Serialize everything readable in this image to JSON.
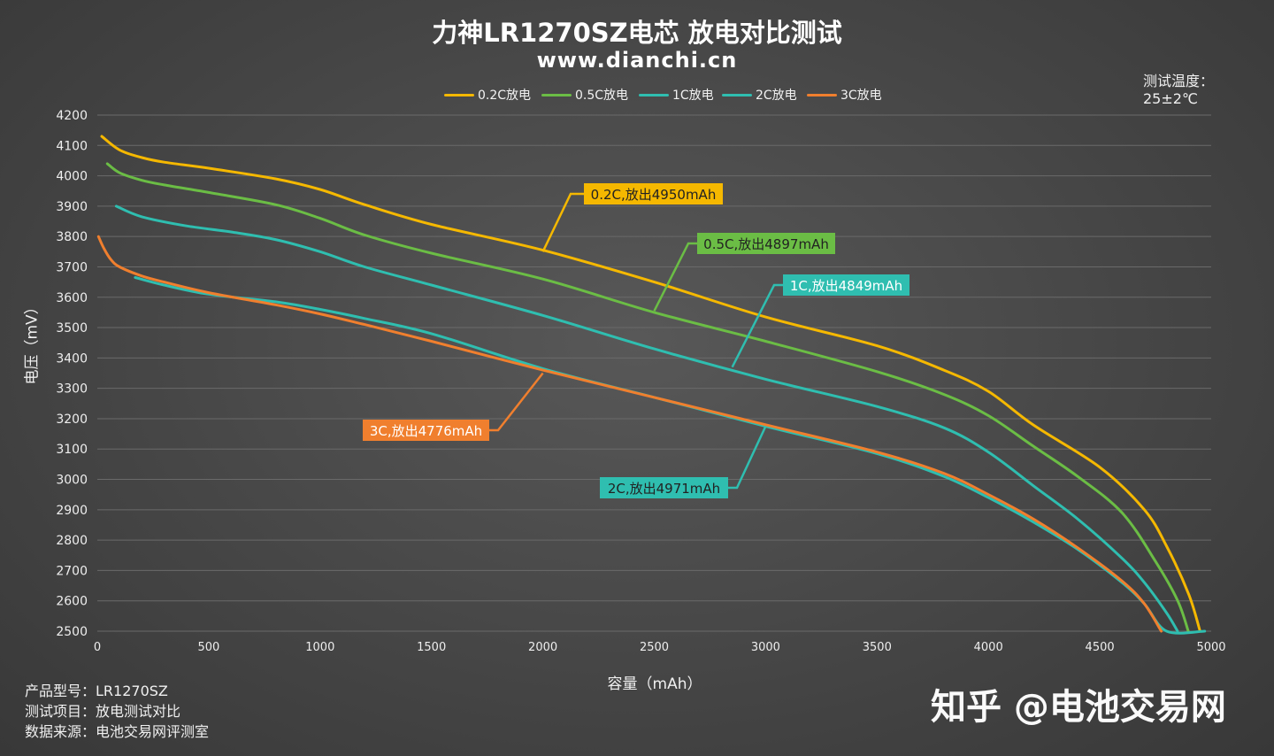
{
  "title": "力神LR1270SZ电芯 放电对比测试",
  "subtitle": "www.dianchi.cn",
  "temp_label": "测试温度：",
  "temp_value": "25±2℃",
  "info": {
    "model": "产品型号：LR1270SZ",
    "item": "测试项目：放电测试对比",
    "source": "数据来源：电池交易网评测室"
  },
  "watermark": "知乎 @电池交易网",
  "chart_data": {
    "type": "line",
    "xlabel": "容量（mAh）",
    "ylabel": "电压（mV）",
    "xlim": [
      0,
      5000
    ],
    "ylim": [
      2500,
      4200
    ],
    "xticks": [
      "0",
      "500",
      "1000",
      "1500",
      "2000",
      "2500",
      "3000",
      "3500",
      "4000",
      "4500",
      "5000"
    ],
    "yticks": [
      "2500",
      "2600",
      "2700",
      "2800",
      "2900",
      "3000",
      "3100",
      "3200",
      "3300",
      "3400",
      "3500",
      "3600",
      "3700",
      "3800",
      "3900",
      "4000",
      "4100",
      "4200"
    ],
    "grid": "horizontal",
    "legend_position": "top-center",
    "series": [
      {
        "name": "0.2C放电",
        "color": "#f5b800",
        "x": [
          20,
          100,
          200,
          300,
          500,
          800,
          1000,
          1200,
          1500,
          2000,
          2500,
          3000,
          3500,
          3800,
          4000,
          4200,
          4500,
          4700,
          4800,
          4900,
          4950
        ],
        "y": [
          4130,
          4085,
          4060,
          4045,
          4025,
          3990,
          3955,
          3905,
          3840,
          3755,
          3650,
          3535,
          3440,
          3360,
          3290,
          3180,
          3040,
          2900,
          2780,
          2620,
          2500
        ]
      },
      {
        "name": "0.5C放电",
        "color": "#6bbd45",
        "x": [
          45,
          100,
          200,
          300,
          500,
          800,
          1000,
          1200,
          1500,
          2000,
          2500,
          3000,
          3500,
          3800,
          4000,
          4200,
          4400,
          4600,
          4750,
          4850,
          4897
        ],
        "y": [
          4040,
          4010,
          3985,
          3970,
          3945,
          3905,
          3860,
          3805,
          3745,
          3660,
          3550,
          3455,
          3355,
          3280,
          3210,
          3110,
          3010,
          2890,
          2730,
          2600,
          2500
        ]
      },
      {
        "name": "1C放电",
        "color": "#2fbeb0",
        "x": [
          85,
          200,
          400,
          600,
          800,
          1000,
          1200,
          1500,
          2000,
          2500,
          3000,
          3500,
          3800,
          4000,
          4200,
          4400,
          4600,
          4700,
          4800,
          4849
        ],
        "y": [
          3900,
          3865,
          3835,
          3815,
          3790,
          3750,
          3700,
          3640,
          3540,
          3430,
          3330,
          3240,
          3170,
          3090,
          2980,
          2870,
          2740,
          2660,
          2560,
          2500
        ]
      },
      {
        "name": "2C放电",
        "color": "#2fbeb0",
        "x": [
          170,
          300,
          500,
          800,
          1000,
          1200,
          1500,
          2000,
          2500,
          3000,
          3500,
          3800,
          4000,
          4200,
          4400,
          4600,
          4700,
          4800,
          4971
        ],
        "y": [
          3665,
          3640,
          3610,
          3585,
          3560,
          3530,
          3480,
          3365,
          3270,
          3175,
          3085,
          3010,
          2940,
          2860,
          2770,
          2660,
          2590,
          2500,
          2500
        ]
      },
      {
        "name": "3C放电",
        "color": "#f07f2e",
        "x": [
          5,
          30,
          60,
          100,
          200,
          300,
          500,
          800,
          1000,
          1200,
          1500,
          2000,
          2500,
          3000,
          3500,
          3800,
          4000,
          4200,
          4400,
          4600,
          4700,
          4776
        ],
        "y": [
          3800,
          3760,
          3725,
          3700,
          3670,
          3650,
          3615,
          3575,
          3545,
          3510,
          3455,
          3360,
          3270,
          3180,
          3090,
          3020,
          2950,
          2870,
          2775,
          2665,
          2590,
          2500
        ]
      }
    ],
    "annotations": [
      {
        "text": "0.2C,放出4950mAh",
        "color": "#f5b800",
        "text_color": "#222222",
        "at": [
          2000,
          3750
        ]
      },
      {
        "text": "0.5C,放出4897mAh",
        "color": "#6bbd45",
        "text_color": "#222222",
        "at": [
          2500,
          3555
        ]
      },
      {
        "text": "1C,放出4849mAh",
        "color": "#2fbeb0",
        "text_color": "#ffffff",
        "at": [
          2850,
          3370
        ]
      },
      {
        "text": "3C,放出4776mAh",
        "color": "#f07f2e",
        "text_color": "#ffffff",
        "at": [
          2000,
          3350
        ]
      },
      {
        "text": "2C,放出4971mAh",
        "color": "#2fbeb0",
        "text_color": "#222222",
        "at": [
          3000,
          3175
        ]
      }
    ]
  }
}
